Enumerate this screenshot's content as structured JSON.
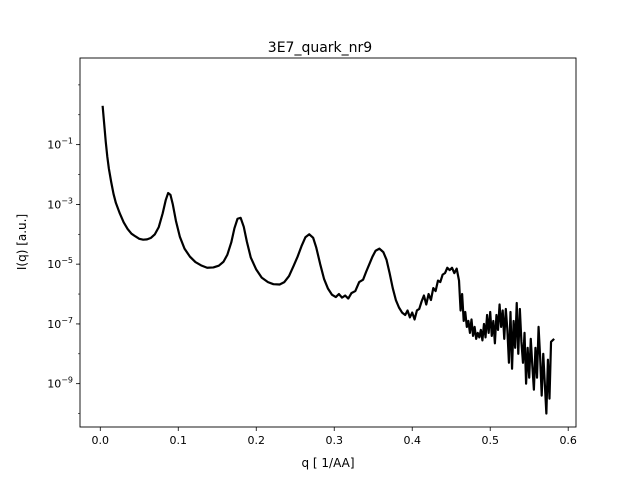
{
  "chart_data": {
    "type": "line",
    "title": "3E7_quark_nr9",
    "xlabel": "q [ 1/AA]",
    "ylabel": "I(q) [a.u.]",
    "xscale": "linear",
    "yscale": "log",
    "xlim": [
      -0.026,
      0.61
    ],
    "ylim_log10": [
      -10.45,
      1.9
    ],
    "grid": false,
    "x_ticks": [
      {
        "value": 0.0,
        "label": "0.0"
      },
      {
        "value": 0.1,
        "label": "0.1"
      },
      {
        "value": 0.2,
        "label": "0.2"
      },
      {
        "value": 0.3,
        "label": "0.3"
      },
      {
        "value": 0.4,
        "label": "0.4"
      },
      {
        "value": 0.5,
        "label": "0.5"
      },
      {
        "value": 0.6,
        "label": "0.6"
      }
    ],
    "y_ticks": [
      {
        "exp": -1,
        "base": "10",
        "sup": "−1"
      },
      {
        "exp": -3,
        "base": "10",
        "sup": "−3"
      },
      {
        "exp": -5,
        "base": "10",
        "sup": "−5"
      },
      {
        "exp": -7,
        "base": "10",
        "sup": "−7"
      },
      {
        "exp": -9,
        "base": "10",
        "sup": "−9"
      }
    ],
    "series": [
      {
        "color": "#000000",
        "points": [
          [
            0.003,
            0.3
          ],
          [
            0.005,
            -0.3
          ],
          [
            0.007,
            -0.9
          ],
          [
            0.009,
            -1.4
          ],
          [
            0.011,
            -1.8
          ],
          [
            0.014,
            -2.25
          ],
          [
            0.017,
            -2.65
          ],
          [
            0.02,
            -2.95
          ],
          [
            0.025,
            -3.3
          ],
          [
            0.03,
            -3.6
          ],
          [
            0.035,
            -3.82
          ],
          [
            0.04,
            -3.98
          ],
          [
            0.045,
            -4.07
          ],
          [
            0.05,
            -4.15
          ],
          [
            0.055,
            -4.18
          ],
          [
            0.06,
            -4.17
          ],
          [
            0.065,
            -4.12
          ],
          [
            0.07,
            -4.0
          ],
          [
            0.075,
            -3.76
          ],
          [
            0.08,
            -3.3
          ],
          [
            0.084,
            -2.85
          ],
          [
            0.087,
            -2.62
          ],
          [
            0.09,
            -2.68
          ],
          [
            0.093,
            -3.0
          ],
          [
            0.097,
            -3.55
          ],
          [
            0.102,
            -4.08
          ],
          [
            0.108,
            -4.48
          ],
          [
            0.115,
            -4.75
          ],
          [
            0.122,
            -4.93
          ],
          [
            0.13,
            -5.05
          ],
          [
            0.137,
            -5.12
          ],
          [
            0.145,
            -5.11
          ],
          [
            0.152,
            -5.05
          ],
          [
            0.158,
            -4.92
          ],
          [
            0.163,
            -4.68
          ],
          [
            0.168,
            -4.27
          ],
          [
            0.172,
            -3.8
          ],
          [
            0.176,
            -3.48
          ],
          [
            0.18,
            -3.45
          ],
          [
            0.184,
            -3.75
          ],
          [
            0.188,
            -4.25
          ],
          [
            0.193,
            -4.78
          ],
          [
            0.2,
            -5.18
          ],
          [
            0.207,
            -5.45
          ],
          [
            0.215,
            -5.6
          ],
          [
            0.222,
            -5.67
          ],
          [
            0.23,
            -5.68
          ],
          [
            0.236,
            -5.6
          ],
          [
            0.242,
            -5.4
          ],
          [
            0.248,
            -5.05
          ],
          [
            0.253,
            -4.75
          ],
          [
            0.258,
            -4.4
          ],
          [
            0.263,
            -4.1
          ],
          [
            0.268,
            -4.0
          ],
          [
            0.273,
            -4.12
          ],
          [
            0.277,
            -4.45
          ],
          [
            0.282,
            -5.0
          ],
          [
            0.287,
            -5.5
          ],
          [
            0.292,
            -5.82
          ],
          [
            0.297,
            -6.02
          ],
          [
            0.302,
            -6.1
          ],
          [
            0.306,
            -6.0
          ],
          [
            0.31,
            -6.12
          ],
          [
            0.314,
            -6.05
          ],
          [
            0.318,
            -6.15
          ],
          [
            0.322,
            -5.97
          ],
          [
            0.327,
            -5.9
          ],
          [
            0.332,
            -5.6
          ],
          [
            0.337,
            -5.52
          ],
          [
            0.341,
            -5.25
          ],
          [
            0.345,
            -5.0
          ],
          [
            0.349,
            -4.75
          ],
          [
            0.353,
            -4.55
          ],
          [
            0.358,
            -4.48
          ],
          [
            0.363,
            -4.6
          ],
          [
            0.367,
            -4.85
          ],
          [
            0.371,
            -5.3
          ],
          [
            0.375,
            -5.8
          ],
          [
            0.379,
            -6.2
          ],
          [
            0.383,
            -6.45
          ],
          [
            0.387,
            -6.62
          ],
          [
            0.391,
            -6.7
          ],
          [
            0.394,
            -6.55
          ],
          [
            0.397,
            -6.78
          ],
          [
            0.4,
            -6.62
          ],
          [
            0.403,
            -6.85
          ],
          [
            0.406,
            -6.55
          ],
          [
            0.409,
            -6.5
          ],
          [
            0.412,
            -6.25
          ],
          [
            0.415,
            -6.05
          ],
          [
            0.418,
            -6.35
          ],
          [
            0.421,
            -6.0
          ],
          [
            0.424,
            -6.2
          ],
          [
            0.427,
            -5.8
          ],
          [
            0.43,
            -5.9
          ],
          [
            0.433,
            -5.55
          ],
          [
            0.436,
            -5.6
          ],
          [
            0.439,
            -5.35
          ],
          [
            0.442,
            -5.3
          ],
          [
            0.445,
            -5.12
          ],
          [
            0.448,
            -5.2
          ],
          [
            0.451,
            -5.12
          ],
          [
            0.454,
            -5.3
          ],
          [
            0.457,
            -5.15
          ],
          [
            0.46,
            -5.55
          ],
          [
            0.462,
            -6.55
          ],
          [
            0.464,
            -6.0
          ],
          [
            0.466,
            -6.9
          ],
          [
            0.468,
            -6.6
          ],
          [
            0.47,
            -7.1
          ],
          [
            0.472,
            -6.9
          ],
          [
            0.474,
            -7.3
          ],
          [
            0.476,
            -6.85
          ],
          [
            0.478,
            -7.4
          ],
          [
            0.48,
            -7.1
          ],
          [
            0.482,
            -7.5
          ],
          [
            0.484,
            -7.3
          ],
          [
            0.486,
            -7.45
          ],
          [
            0.488,
            -7.2
          ],
          [
            0.49,
            -7.55
          ],
          [
            0.492,
            -7.0
          ],
          [
            0.494,
            -7.45
          ],
          [
            0.496,
            -6.7
          ],
          [
            0.498,
            -7.3
          ],
          [
            0.5,
            -6.6
          ],
          [
            0.502,
            -7.4
          ],
          [
            0.504,
            -6.9
          ],
          [
            0.506,
            -7.65
          ],
          [
            0.508,
            -6.7
          ],
          [
            0.51,
            -7.2
          ],
          [
            0.512,
            -6.35
          ],
          [
            0.514,
            -7.1
          ],
          [
            0.516,
            -6.55
          ],
          [
            0.518,
            -7.5
          ],
          [
            0.52,
            -6.5
          ],
          [
            0.522,
            -7.2
          ],
          [
            0.524,
            -8.3
          ],
          [
            0.526,
            -6.6
          ],
          [
            0.528,
            -8.5
          ],
          [
            0.53,
            -6.9
          ],
          [
            0.532,
            -7.8
          ],
          [
            0.534,
            -6.3
          ],
          [
            0.536,
            -8.0
          ],
          [
            0.538,
            -6.5
          ],
          [
            0.54,
            -7.6
          ],
          [
            0.542,
            -8.3
          ],
          [
            0.544,
            -7.3
          ],
          [
            0.546,
            -9.0
          ],
          [
            0.548,
            -7.8
          ],
          [
            0.55,
            -8.8
          ],
          [
            0.552,
            -7.5
          ],
          [
            0.554,
            -8.4
          ],
          [
            0.556,
            -9.2
          ],
          [
            0.558,
            -7.8
          ],
          [
            0.56,
            -8.8
          ],
          [
            0.562,
            -7.1
          ],
          [
            0.564,
            -8.1
          ],
          [
            0.566,
            -9.4
          ],
          [
            0.568,
            -8.0
          ],
          [
            0.57,
            -9.0
          ],
          [
            0.572,
            -10.0
          ],
          [
            0.574,
            -8.2
          ],
          [
            0.576,
            -9.5
          ],
          [
            0.578,
            -7.6
          ],
          [
            0.582,
            -7.5
          ]
        ]
      }
    ]
  }
}
